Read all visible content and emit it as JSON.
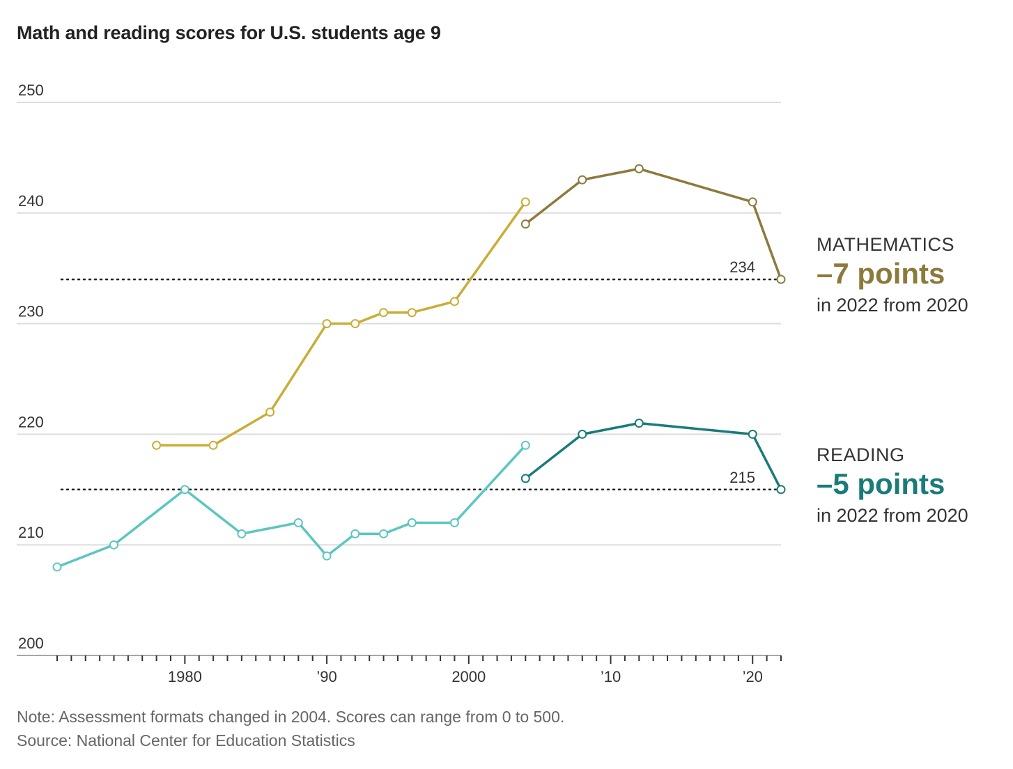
{
  "title": "Math and reading scores for U.S. students age 9",
  "note": "Note: Assessment formats changed in 2004. Scores can range from 0 to 500.",
  "source": "Source: National Center for Education Statistics",
  "callouts": {
    "math": {
      "label": "MATHEMATICS",
      "change": "–7 points",
      "since": "in 2022 from 2020"
    },
    "reading": {
      "label": "READING",
      "change": "–5 points",
      "since": "in 2022 from 2020"
    }
  },
  "colors": {
    "math_old": "#c9ad35",
    "math_new": "#8c7a3c",
    "reading_old": "#5cc6c0",
    "reading_new": "#1a7b79",
    "grid": "#dddddd",
    "text": "#333333"
  },
  "chart_data": {
    "type": "line",
    "title": "Math and reading scores for U.S. students age 9",
    "xlim": [
      1971,
      2022
    ],
    "ylim": [
      200,
      250
    ],
    "y_ticks": [
      200,
      210,
      220,
      230,
      240,
      250
    ],
    "x_tick_labels": [
      {
        "x": 1980,
        "label": "1980"
      },
      {
        "x": 1990,
        "label": "’90"
      },
      {
        "x": 2000,
        "label": "2000"
      },
      {
        "x": 2010,
        "label": "’10"
      },
      {
        "x": 2020,
        "label": "’20"
      }
    ],
    "grid": true,
    "reference_lines": [
      {
        "value": 234,
        "label": "234",
        "series": "math"
      },
      {
        "value": 215,
        "label": "215",
        "series": "reading"
      }
    ],
    "series": [
      {
        "id": "math_old",
        "color_key": "math_old",
        "x": [
          1978,
          1982,
          1986,
          1990,
          1992,
          1994,
          1996,
          1999,
          2004
        ],
        "y": [
          219,
          219,
          222,
          230,
          230,
          231,
          231,
          232,
          241
        ]
      },
      {
        "id": "math_new",
        "color_key": "math_new",
        "x": [
          2004,
          2008,
          2012,
          2020,
          2022
        ],
        "y": [
          239,
          243,
          244,
          241,
          234
        ]
      },
      {
        "id": "reading_old",
        "color_key": "reading_old",
        "x": [
          1971,
          1975,
          1980,
          1984,
          1988,
          1990,
          1992,
          1994,
          1996,
          1999,
          2004
        ],
        "y": [
          208,
          210,
          215,
          211,
          212,
          209,
          211,
          211,
          212,
          212,
          219
        ]
      },
      {
        "id": "reading_new",
        "color_key": "reading_new",
        "x": [
          2004,
          2008,
          2012,
          2020,
          2022
        ],
        "y": [
          216,
          220,
          221,
          220,
          215
        ]
      }
    ]
  }
}
